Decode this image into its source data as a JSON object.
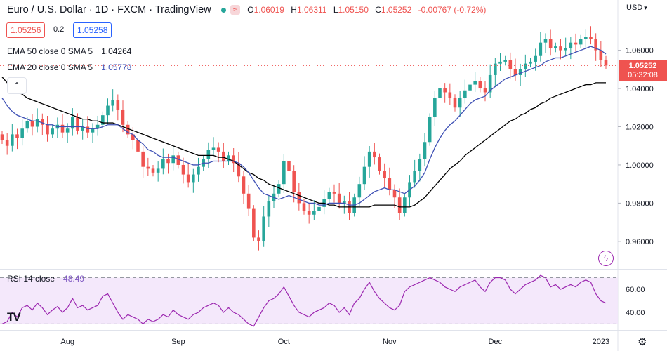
{
  "header": {
    "title": "Euro / U.S. Dollar · 1D · FXCM · TradingView",
    "ohlc": [
      {
        "k": "O",
        "v": "1.06019"
      },
      {
        "k": "H",
        "v": "1.06311"
      },
      {
        "k": "L",
        "v": "1.05150"
      },
      {
        "k": "C",
        "v": "1.05252"
      },
      {
        "k": "",
        "v": "-0.00767 (-0.72%)"
      }
    ],
    "status_icon": "green-dot-icon",
    "wave_icon": "≈"
  },
  "trade": {
    "sell": "1.05256",
    "spread": "0.2",
    "buy": "1.05258"
  },
  "indicators": {
    "ema50": {
      "label": "EMA 50 close 0 SMA 5",
      "value": "1.04264"
    },
    "ema20": {
      "label": "EMA 20 close 0 SMA 5",
      "value": "1.05778"
    },
    "rsi": {
      "label": "RSI 14 close",
      "value": "48.49"
    }
  },
  "axis": {
    "currency": "USD",
    "price_tag": "1.05252",
    "countdown": "05:32:08"
  },
  "colors": {
    "up": "#26a69a",
    "down": "#ef5350",
    "ema50": "#000000",
    "ema20": "#3f51b5",
    "rsi": "#9c27b0"
  },
  "chart_data": {
    "type": "candlestick",
    "title": "Euro / U.S. Dollar · 1D · FXCM",
    "price_ylim": [
      0.946,
      1.076
    ],
    "yticks": [
      0.96,
      0.98,
      1.0,
      1.02,
      1.04,
      1.06
    ],
    "ytick_labels": [
      "0.96000",
      "0.98000",
      "1.00000",
      "1.02000",
      "1.04000",
      "1.06000"
    ],
    "x_labels": [
      {
        "i": 13,
        "label": "Aug"
      },
      {
        "i": 35,
        "label": "Sep"
      },
      {
        "i": 56,
        "label": "Oct"
      },
      {
        "i": 77,
        "label": "Nov"
      },
      {
        "i": 98,
        "label": "Dec"
      },
      {
        "i": 119,
        "label": "2023"
      }
    ],
    "closes": [
      1.013,
      1.01,
      1.016,
      1.014,
      1.019,
      1.023,
      1.02,
      1.024,
      1.021,
      1.016,
      1.019,
      1.021,
      1.017,
      1.019,
      1.025,
      1.018,
      1.02,
      1.017,
      1.019,
      1.021,
      1.026,
      1.031,
      1.034,
      1.029,
      1.021,
      1.016,
      1.013,
      1.007,
      0.999,
      0.998,
      0.996,
      0.998,
      1.003,
      1.001,
      1.005,
      1.0,
      0.995,
      0.991,
      0.995,
      0.999,
      1.003,
      1.008,
      1.009,
      1.007,
      1.002,
      1.005,
      1.001,
      0.994,
      0.985,
      0.977,
      0.962,
      0.96,
      0.973,
      0.981,
      0.985,
      0.99,
      1.002,
      0.997,
      0.986,
      0.98,
      0.976,
      0.974,
      0.976,
      0.978,
      0.982,
      0.986,
      0.985,
      0.98,
      0.981,
      0.975,
      0.983,
      0.99,
      0.999,
      1.007,
      1.004,
      0.997,
      0.993,
      0.987,
      0.983,
      0.975,
      0.983,
      0.991,
      0.997,
      1.003,
      1.012,
      1.025,
      1.035,
      1.04,
      1.038,
      1.035,
      1.03,
      1.035,
      1.039,
      1.042,
      1.044,
      1.04,
      1.038,
      1.047,
      1.053,
      1.054,
      1.055,
      1.05,
      1.047,
      1.05,
      1.053,
      1.054,
      1.057,
      1.064,
      1.066,
      1.061,
      1.062,
      1.06,
      1.061,
      1.064,
      1.063,
      1.066,
      1.067,
      1.066,
      1.06,
      1.055,
      1.052
    ],
    "ema50": [
      1.046,
      1.043,
      1.041,
      1.038,
      1.037,
      1.035,
      1.034,
      1.033,
      1.032,
      1.031,
      1.03,
      1.029,
      1.028,
      1.027,
      1.026,
      1.025,
      1.024,
      1.024,
      1.023,
      1.023,
      1.022,
      1.022,
      1.022,
      1.021,
      1.02,
      1.019,
      1.018,
      1.017,
      1.016,
      1.015,
      1.014,
      1.013,
      1.012,
      1.011,
      1.01,
      1.009,
      1.008,
      1.007,
      1.006,
      1.005,
      1.005,
      1.005,
      1.005,
      1.004,
      1.004,
      1.003,
      1.002,
      1.0,
      0.998,
      0.996,
      0.995,
      0.993,
      0.992,
      0.99,
      0.989,
      0.988,
      0.987,
      0.986,
      0.985,
      0.984,
      0.983,
      0.982,
      0.981,
      0.98,
      0.98,
      0.979,
      0.979,
      0.978,
      0.978,
      0.978,
      0.978,
      0.978,
      0.978,
      0.978,
      0.979,
      0.979,
      0.979,
      0.979,
      0.979,
      0.978,
      0.978,
      0.978,
      0.979,
      0.981,
      0.983,
      0.986,
      0.989,
      0.992,
      0.995,
      0.998,
      1.0,
      1.002,
      1.005,
      1.007,
      1.009,
      1.011,
      1.013,
      1.015,
      1.017,
      1.019,
      1.021,
      1.023,
      1.024,
      1.026,
      1.027,
      1.029,
      1.03,
      1.032,
      1.033,
      1.035,
      1.036,
      1.037,
      1.038,
      1.039,
      1.04,
      1.041,
      1.042,
      1.042,
      1.043,
      1.043,
      1.043
    ],
    "ema20": [
      1.035,
      1.031,
      1.028,
      1.026,
      1.025,
      1.024,
      1.023,
      1.023,
      1.022,
      1.021,
      1.021,
      1.02,
      1.02,
      1.02,
      1.02,
      1.02,
      1.02,
      1.019,
      1.019,
      1.019,
      1.02,
      1.021,
      1.021,
      1.021,
      1.019,
      1.017,
      1.016,
      1.013,
      1.011,
      1.008,
      1.007,
      1.005,
      1.004,
      1.004,
      1.004,
      1.003,
      1.002,
      1.001,
      1.0,
      1.0,
      1.001,
      1.001,
      1.002,
      1.002,
      1.002,
      1.002,
      1.002,
      1.001,
      0.999,
      0.996,
      0.992,
      0.988,
      0.985,
      0.984,
      0.983,
      0.982,
      0.983,
      0.984,
      0.983,
      0.982,
      0.981,
      0.98,
      0.98,
      0.979,
      0.979,
      0.98,
      0.98,
      0.98,
      0.98,
      0.979,
      0.979,
      0.98,
      0.982,
      0.984,
      0.986,
      0.987,
      0.988,
      0.987,
      0.987,
      0.986,
      0.985,
      0.987,
      0.989,
      0.992,
      0.996,
      1.003,
      1.009,
      1.014,
      1.018,
      1.021,
      1.023,
      1.026,
      1.029,
      1.032,
      1.034,
      1.035,
      1.036,
      1.039,
      1.041,
      1.043,
      1.045,
      1.046,
      1.047,
      1.048,
      1.049,
      1.05,
      1.051,
      1.052,
      1.054,
      1.055,
      1.056,
      1.056,
      1.057,
      1.058,
      1.059,
      1.06,
      1.061,
      1.062,
      1.061,
      1.06,
      1.058
    ],
    "rsi_ylim": [
      26,
      77
    ],
    "rsi_yticks": [
      40,
      60
    ],
    "rsi_ytick_labels": [
      "40.00",
      "60.00"
    ],
    "rsi_band": [
      30,
      70
    ],
    "rsi": [
      30,
      32,
      40,
      36,
      44,
      46,
      42,
      48,
      44,
      38,
      42,
      45,
      40,
      44,
      52,
      44,
      46,
      42,
      44,
      46,
      54,
      56,
      48,
      40,
      34,
      38,
      36,
      34,
      30,
      34,
      32,
      34,
      38,
      36,
      42,
      38,
      36,
      34,
      38,
      40,
      44,
      46,
      48,
      46,
      40,
      44,
      40,
      38,
      34,
      30,
      28,
      36,
      44,
      50,
      52,
      56,
      62,
      54,
      46,
      40,
      38,
      36,
      40,
      42,
      44,
      48,
      46,
      40,
      44,
      38,
      48,
      52,
      60,
      66,
      58,
      52,
      48,
      44,
      42,
      46,
      58,
      62,
      64,
      66,
      68,
      70,
      68,
      66,
      62,
      60,
      58,
      62,
      64,
      66,
      68,
      62,
      58,
      66,
      70,
      70,
      68,
      60,
      56,
      60,
      64,
      66,
      68,
      72,
      70,
      62,
      64,
      60,
      62,
      64,
      62,
      66,
      68,
      66,
      56,
      50,
      48
    ]
  }
}
